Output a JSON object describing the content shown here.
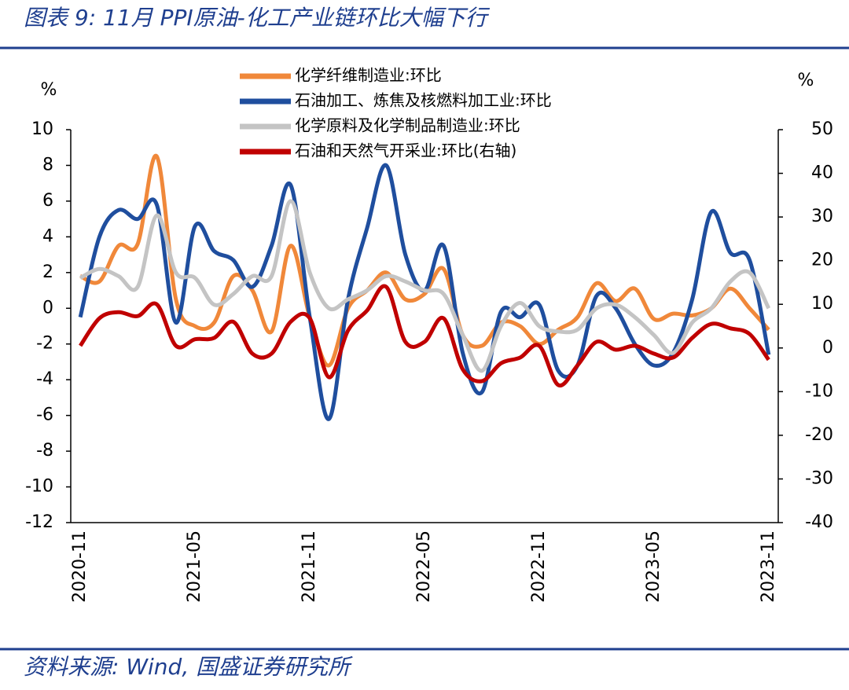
{
  "chart_data": {
    "type": "line",
    "title": "图表 9:  11月 PPI原油-化工产业链环比大幅下行",
    "source": "资料来源:  Wind, 国盛证券研究所",
    "ylabel": "%",
    "y2label": "%",
    "categories": [
      "2020-11",
      null,
      null,
      null,
      null,
      null,
      "2021-05",
      null,
      null,
      null,
      null,
      null,
      "2021-11",
      null,
      null,
      null,
      null,
      null,
      "2022-05",
      null,
      null,
      null,
      null,
      null,
      "2022-11",
      null,
      null,
      null,
      null,
      null,
      "2023-05",
      null,
      null,
      null,
      null,
      null,
      "2023-11"
    ],
    "ylim": [
      -12,
      10
    ],
    "yticks": [
      -12,
      -10,
      -8,
      -6,
      -4,
      -2,
      0,
      2,
      4,
      6,
      8,
      10
    ],
    "y2lim": [
      -40,
      50
    ],
    "y2ticks": [
      -40,
      -30,
      -20,
      -10,
      0,
      10,
      20,
      30,
      40,
      50
    ],
    "series": [
      {
        "name": "化学纤维制造业:环比",
        "color": "#f0883a",
        "values": [
          1.8,
          1.5,
          3.5,
          3.6,
          8.5,
          0.5,
          -1,
          -0.8,
          1.8,
          1,
          -1.3,
          3.5,
          -0.5,
          -3.2,
          0,
          1,
          2,
          0.5,
          0.8,
          2.2,
          -1.5,
          -2.1,
          -0.8,
          -1,
          -2,
          -1.2,
          -0.5,
          1.4,
          0.4,
          1.1,
          -0.6,
          -0.3,
          -0.4,
          0,
          1.1,
          0,
          -1.2
        ]
      },
      {
        "name": "石油加工、炼焦及核燃料加工业:环比",
        "color": "#1f4e9e",
        "values": [
          -0.5,
          4,
          5.5,
          5,
          5.8,
          -0.8,
          4.6,
          3.2,
          2.7,
          1.2,
          3.5,
          6.9,
          -0.5,
          -6.2,
          0.5,
          4.5,
          8,
          3,
          1,
          3.5,
          -2.5,
          -4.7,
          -0.2,
          -0.5,
          0.2,
          -3.5,
          -3.2,
          0.7,
          0,
          -2,
          -3.2,
          -2.5,
          0.5,
          5.4,
          3.1,
          2.7,
          -2.6
        ]
      },
      {
        "name": "化学原料及化学制品制造业:环比",
        "color": "#c4c4c4",
        "values": [
          1.7,
          2.2,
          1.8,
          1.2,
          5.2,
          2,
          1.7,
          0.2,
          0.8,
          1.8,
          1.8,
          6,
          2,
          0,
          0.5,
          1,
          1.8,
          1.5,
          1,
          0.8,
          -1.5,
          -3.5,
          -1,
          0.3,
          -1,
          -1.3,
          -1.2,
          0,
          0.2,
          -0.5,
          -1.5,
          -2.5,
          -0.8,
          0,
          1.5,
          2,
          0
        ]
      },
      {
        "name": "石油和天然气开采业:环比(右轴)",
        "color": "#c00000",
        "axis": "y2",
        "values": [
          0.5,
          6.8,
          8.2,
          7.3,
          10,
          0.5,
          2,
          2.3,
          6,
          -1.3,
          -1.3,
          6,
          6.8,
          -6.7,
          4,
          8.6,
          14,
          1.4,
          1.4,
          6.8,
          -4.9,
          -7.6,
          -3.5,
          -2.2,
          0.5,
          -8.5,
          -4,
          1.4,
          -0.4,
          0.5,
          -1.3,
          -2.2,
          2.3,
          5.5,
          4.5,
          3.2,
          -2.7
        ]
      }
    ]
  }
}
